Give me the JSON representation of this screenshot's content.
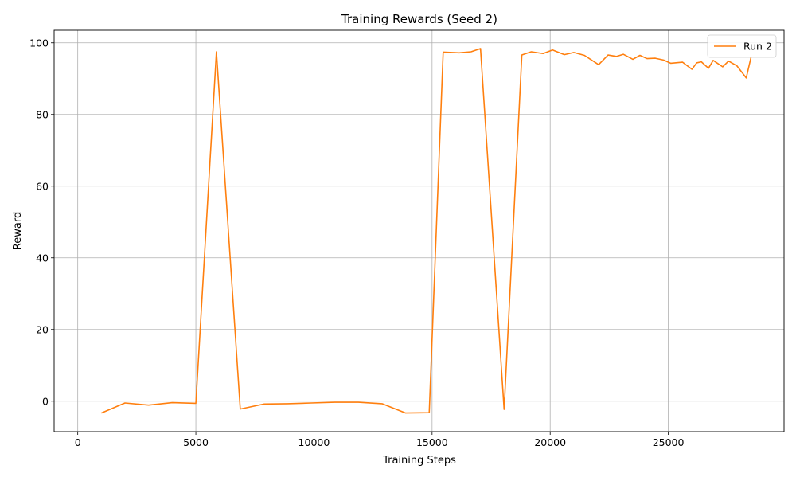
{
  "chart_data": {
    "type": "line",
    "title": "Training Rewards (Seed 2)",
    "xlabel": "Training Steps",
    "ylabel": "Reward",
    "xlim": [
      -1000,
      29900
    ],
    "ylim": [
      -8.5,
      103.5
    ],
    "xticks": [
      0,
      5000,
      10000,
      15000,
      20000,
      25000
    ],
    "xtick_labels": [
      "0",
      "5000",
      "10000",
      "15000",
      "20000",
      "25000"
    ],
    "yticks": [
      0,
      20,
      40,
      60,
      80,
      100
    ],
    "ytick_labels": [
      "0",
      "20",
      "40",
      "60",
      "80",
      "100"
    ],
    "grid": true,
    "legend": {
      "position": "top-right",
      "entries": [
        "Run 2"
      ]
    },
    "series": [
      {
        "name": "Run 2",
        "color": "#ff7f0e",
        "x": [
          1000,
          2000,
          3000,
          4000,
          5000,
          5870,
          6880,
          7880,
          8880,
          9880,
          10880,
          11880,
          12880,
          13880,
          14880,
          15470,
          16150,
          16650,
          17050,
          18050,
          18800,
          19200,
          19700,
          20100,
          20600,
          21000,
          21450,
          22050,
          22450,
          22800,
          23100,
          23500,
          23800,
          24100,
          24450,
          24800,
          25100,
          25600,
          26000,
          26200,
          26400,
          26700,
          26900,
          27300,
          27550,
          27900,
          28300,
          28500
        ],
        "y": [
          -3.3,
          -0.5,
          -1.1,
          -0.4,
          -0.6,
          97.5,
          -2.2,
          -0.8,
          -0.7,
          -0.5,
          -0.3,
          -0.3,
          -0.7,
          -3.3,
          -3.2,
          97.4,
          97.2,
          97.5,
          98.4,
          -2.3,
          96.6,
          97.5,
          97.0,
          98.0,
          96.7,
          97.3,
          96.5,
          93.9,
          96.6,
          96.2,
          96.8,
          95.4,
          96.5,
          95.6,
          95.7,
          95.2,
          94.3,
          94.6,
          92.6,
          94.4,
          94.7,
          92.9,
          95.1,
          93.3,
          94.9,
          93.6,
          90.2,
          95.9
        ]
      }
    ]
  }
}
